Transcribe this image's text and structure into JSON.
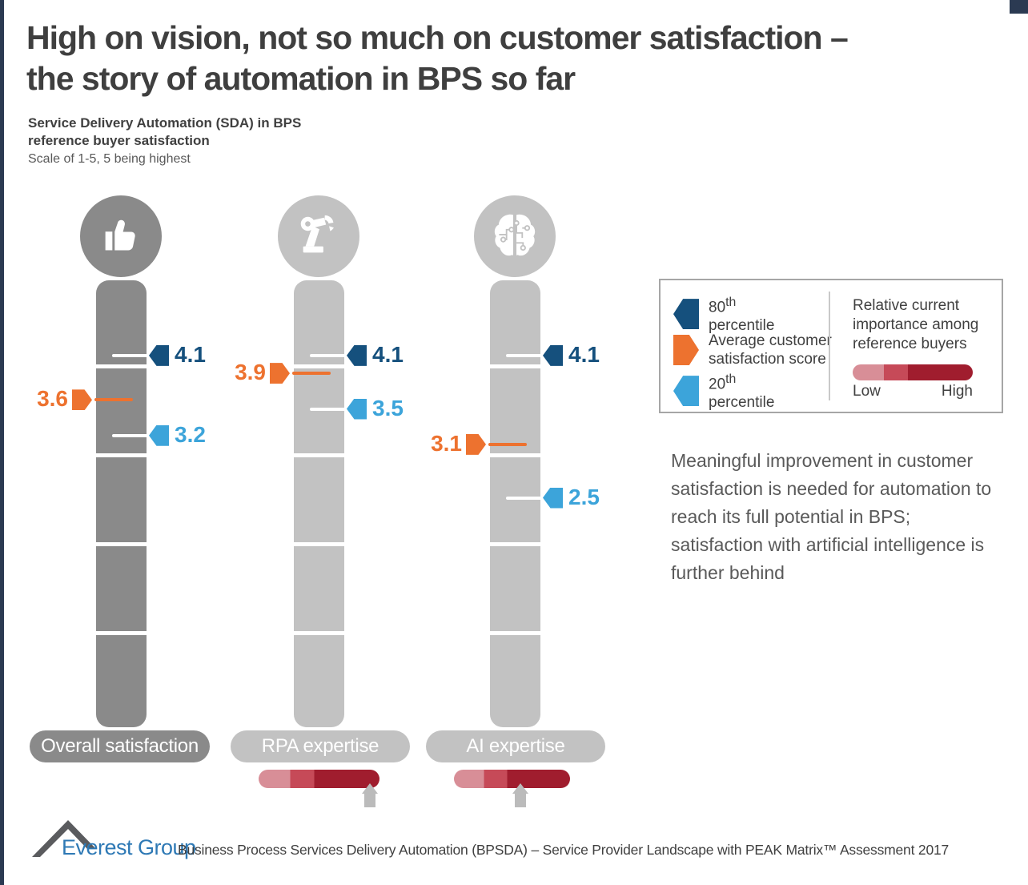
{
  "slide": {
    "title_line1": "High on vision, not so much on customer satisfaction –",
    "title_line2": "the story of automation in BPS so far",
    "subtitle_line1": "Service Delivery Automation (SDA) in BPS",
    "subtitle_line2": "reference buyer satisfaction",
    "scale_note": "Scale of 1-5, 5 being highest",
    "commentary": "Meaningful improvement in customer satisfaction is needed for automation to reach its full potential in BPS; satisfaction with artificial intelligence is further behind",
    "brand": "Everest Group",
    "footer_text": "Business Process Services Delivery Automation (BPSDA) – Service Provider Landscape with PEAK Matrix™ Assessment 2017"
  },
  "chart_data": {
    "type": "bar",
    "title": "Service Delivery Automation (SDA) in BPS reference buyer satisfaction",
    "scale_note": "Scale of 1-5, 5 being highest",
    "ylim": [
      0,
      5
    ],
    "categories": [
      "Overall satisfaction",
      "RPA expertise",
      "AI expertise"
    ],
    "series": [
      {
        "name": "80th percentile",
        "values": [
          4.1,
          4.1,
          4.1
        ],
        "color": "#15507D"
      },
      {
        "name": "Average customer satisfaction score",
        "values": [
          3.6,
          3.9,
          3.1
        ],
        "color": "#ED722F"
      },
      {
        "name": "20th percentile",
        "values": [
          3.2,
          3.5,
          2.5
        ],
        "color": "#3CA4DA"
      }
    ],
    "relative_importance": [
      null,
      0.92,
      0.57
    ],
    "column_icons": [
      "thumbs-up-icon",
      "robot-arm-icon",
      "brain-circuit-icon"
    ],
    "legend_position": "right"
  },
  "legend": {
    "p80": {
      "num": "80",
      "sup": "th",
      "label": "percentile"
    },
    "avg": {
      "line1": "Average customer",
      "line2": "satisfaction score"
    },
    "p20": {
      "num": "20",
      "sup": "th",
      "label": "percentile"
    },
    "importance_title_l1": "Relative current",
    "importance_title_l2": "importance among",
    "importance_title_l3": "reference buyers",
    "low": "Low",
    "high": "High"
  },
  "colors": {
    "percentile80": "#15507D",
    "average": "#ED722F",
    "percentile20": "#3CA4DA",
    "bar_dark": "#8A8A8A",
    "bar_light": "#C2C2C2",
    "gradient_low": "#D88E97",
    "gradient_mid": "#C64A58",
    "gradient_high": "#A01D2E",
    "corner_accent": "#2B3A52",
    "brand_blue": "#2E79B5"
  }
}
